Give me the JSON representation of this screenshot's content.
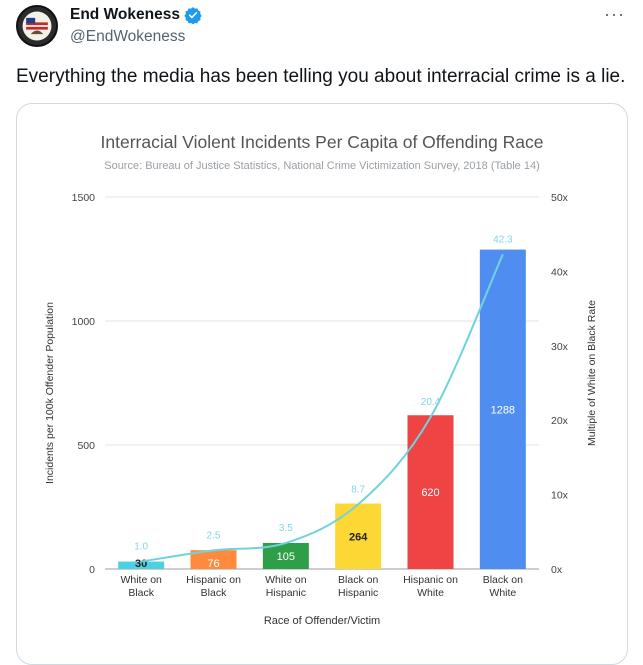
{
  "tweet": {
    "display_name": "End Wokeness",
    "handle": "@EndWokeness",
    "more_label": "···",
    "text": "Everything the media has been telling you about interracial crime is a lie."
  },
  "colors": {
    "verified": "#1d9bf0",
    "line": "#6fd3de",
    "bars": [
      "#4dd0e1",
      "#ff8a3d",
      "#2e9e48",
      "#fdd835",
      "#ef4444",
      "#4f8ef0"
    ]
  },
  "chart_data": {
    "type": "bar",
    "title": "Interracial Violent Incidents Per Capita of Offending Race",
    "subtitle": "Source: Bureau of Justice Statistics, National Crime Victimization Survey, 2018 (Table 14)",
    "xlabel": "Race of Offender/Victim",
    "ylabel": "Incidents per 100k Offender Population",
    "y2label": "Multiple of White on Black Rate",
    "categories": [
      [
        "White on",
        "Black"
      ],
      [
        "Hispanic on",
        "Black"
      ],
      [
        "White on",
        "Hispanic"
      ],
      [
        "Black on",
        "Hispanic"
      ],
      [
        "Hispanic on",
        "White"
      ],
      [
        "Black on",
        "White"
      ]
    ],
    "values": [
      30,
      76,
      105,
      264,
      620,
      1288
    ],
    "value_labels": [
      "30",
      "76",
      "105",
      "264",
      "620",
      "1288"
    ],
    "multiples": [
      1.0,
      2.5,
      3.5,
      8.7,
      20.4,
      42.3
    ],
    "multiple_labels": [
      "1.0",
      "2.5",
      "3.5",
      "8.7",
      "20.4",
      "42.3"
    ],
    "ylim": [
      0,
      1500
    ],
    "yticks": [
      "0",
      "500",
      "1000",
      "1500"
    ],
    "y2lim": [
      0,
      50
    ],
    "y2ticks": [
      "0x",
      "10x",
      "20x",
      "30x",
      "40x",
      "50x"
    ],
    "grid": true
  }
}
